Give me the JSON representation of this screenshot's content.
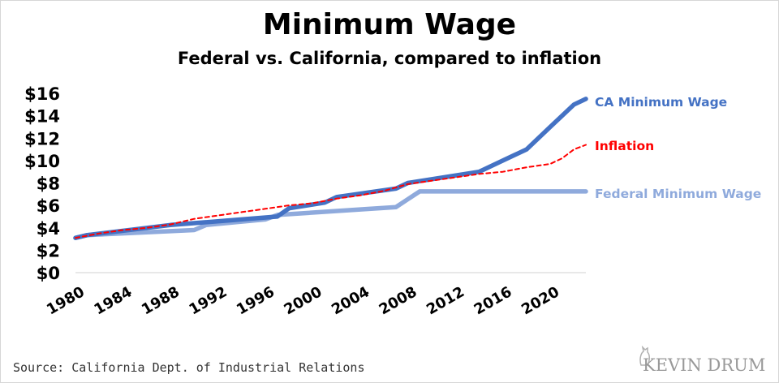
{
  "header": {
    "title": "Minimum Wage",
    "subtitle": "Federal vs. California, compared to inflation"
  },
  "footer": {
    "source": "Source: California Dept. of Industrial Relations",
    "brand": "KEVIN DRUM"
  },
  "colors": {
    "ca": "#4472c4",
    "federal": "#8faadc",
    "inflation": "#ff0000",
    "axis_text": "#000000"
  },
  "chart_data": {
    "type": "line",
    "title": "Minimum Wage",
    "subtitle": "Federal vs. California, compared to inflation",
    "xlabel": "",
    "ylabel": "",
    "xlim": [
      1980,
      2023
    ],
    "ylim": [
      0,
      16
    ],
    "x_ticks": [
      "1980",
      "1984",
      "1988",
      "1992",
      "1996",
      "2000",
      "2004",
      "2008",
      "2012",
      "2016",
      "2020"
    ],
    "y_ticks": [
      "$0",
      "$2",
      "$4",
      "$6",
      "$8",
      "$10",
      "$12",
      "$14",
      "$16"
    ],
    "grid": false,
    "legend": "inline-right",
    "series": [
      {
        "name": "CA Minimum Wage",
        "style": "solid-thick",
        "x": [
          1980,
          1981,
          1988,
          1997,
          1998,
          2001,
          2002,
          2007,
          2008,
          2014,
          2016,
          2017,
          2018,
          2019,
          2020,
          2021,
          2022,
          2023
        ],
        "y": [
          3.1,
          3.35,
          4.25,
          5.0,
          5.75,
          6.25,
          6.75,
          7.5,
          8.0,
          9.0,
          10.0,
          10.5,
          11.0,
          12.0,
          13.0,
          14.0,
          15.0,
          15.5
        ]
      },
      {
        "name": "Inflation",
        "style": "dashed",
        "x": [
          1980,
          1982,
          1984,
          1986,
          1988,
          1990,
          1992,
          1994,
          1996,
          1998,
          2000,
          2002,
          2004,
          2006,
          2008,
          2010,
          2012,
          2014,
          2016,
          2018,
          2020,
          2021,
          2022,
          2023
        ],
        "y": [
          3.1,
          3.5,
          3.8,
          4.0,
          4.3,
          4.8,
          5.1,
          5.4,
          5.7,
          6.0,
          6.2,
          6.6,
          6.9,
          7.3,
          7.9,
          8.2,
          8.5,
          8.8,
          9.0,
          9.4,
          9.7,
          10.2,
          11.0,
          11.4
        ]
      },
      {
        "name": "Federal Minimum Wage",
        "style": "solid-thick",
        "x": [
          1980,
          1981,
          1990,
          1991,
          1996,
          1997,
          2007,
          2008,
          2009,
          2023
        ],
        "y": [
          3.1,
          3.35,
          3.8,
          4.25,
          4.75,
          5.15,
          5.85,
          6.55,
          7.25,
          7.25
        ]
      }
    ]
  }
}
